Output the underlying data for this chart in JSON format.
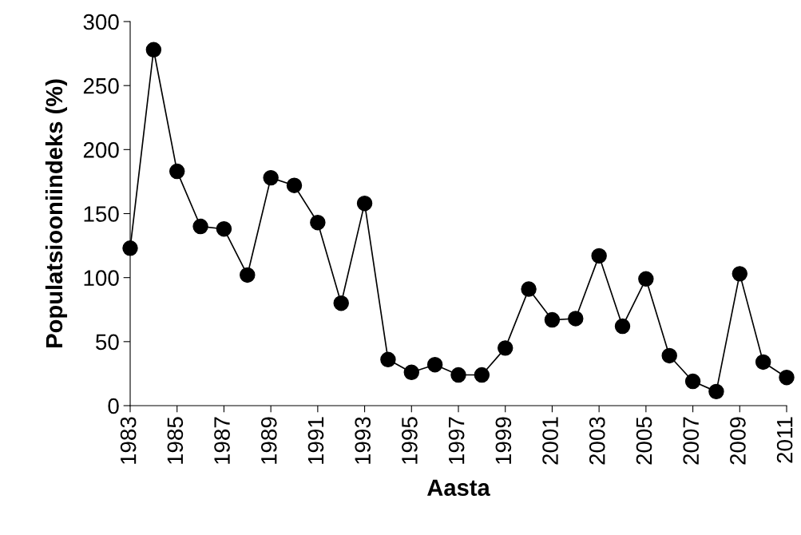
{
  "chart_data": {
    "type": "line",
    "xlabel": "Aasta",
    "ylabel": "Populatsiooniindeks (%)",
    "x": [
      1983,
      1984,
      1985,
      1986,
      1987,
      1988,
      1989,
      1990,
      1991,
      1992,
      1993,
      1994,
      1995,
      1996,
      1997,
      1998,
      1999,
      2000,
      2001,
      2002,
      2003,
      2004,
      2005,
      2006,
      2007,
      2008,
      2009,
      2010,
      2011
    ],
    "series": [
      {
        "color": "#000000",
        "values": [
          123,
          278,
          183,
          140,
          138,
          102,
          178,
          172,
          143,
          80,
          158,
          36,
          26,
          32,
          24,
          24,
          45,
          91,
          67,
          68,
          117,
          62,
          99,
          39,
          19,
          11,
          103,
          34,
          22
        ]
      }
    ],
    "xlim": [
      1983,
      2011
    ],
    "xticks": [
      1983,
      1985,
      1987,
      1989,
      1991,
      1993,
      1995,
      1997,
      1999,
      2001,
      2003,
      2005,
      2007,
      2009,
      2011
    ],
    "ylim": [
      0,
      300
    ],
    "yticks": [
      0,
      50,
      100,
      150,
      200,
      250,
      300
    ],
    "marker": "circle",
    "line_style": "solid",
    "grid": false,
    "legend": false
  }
}
